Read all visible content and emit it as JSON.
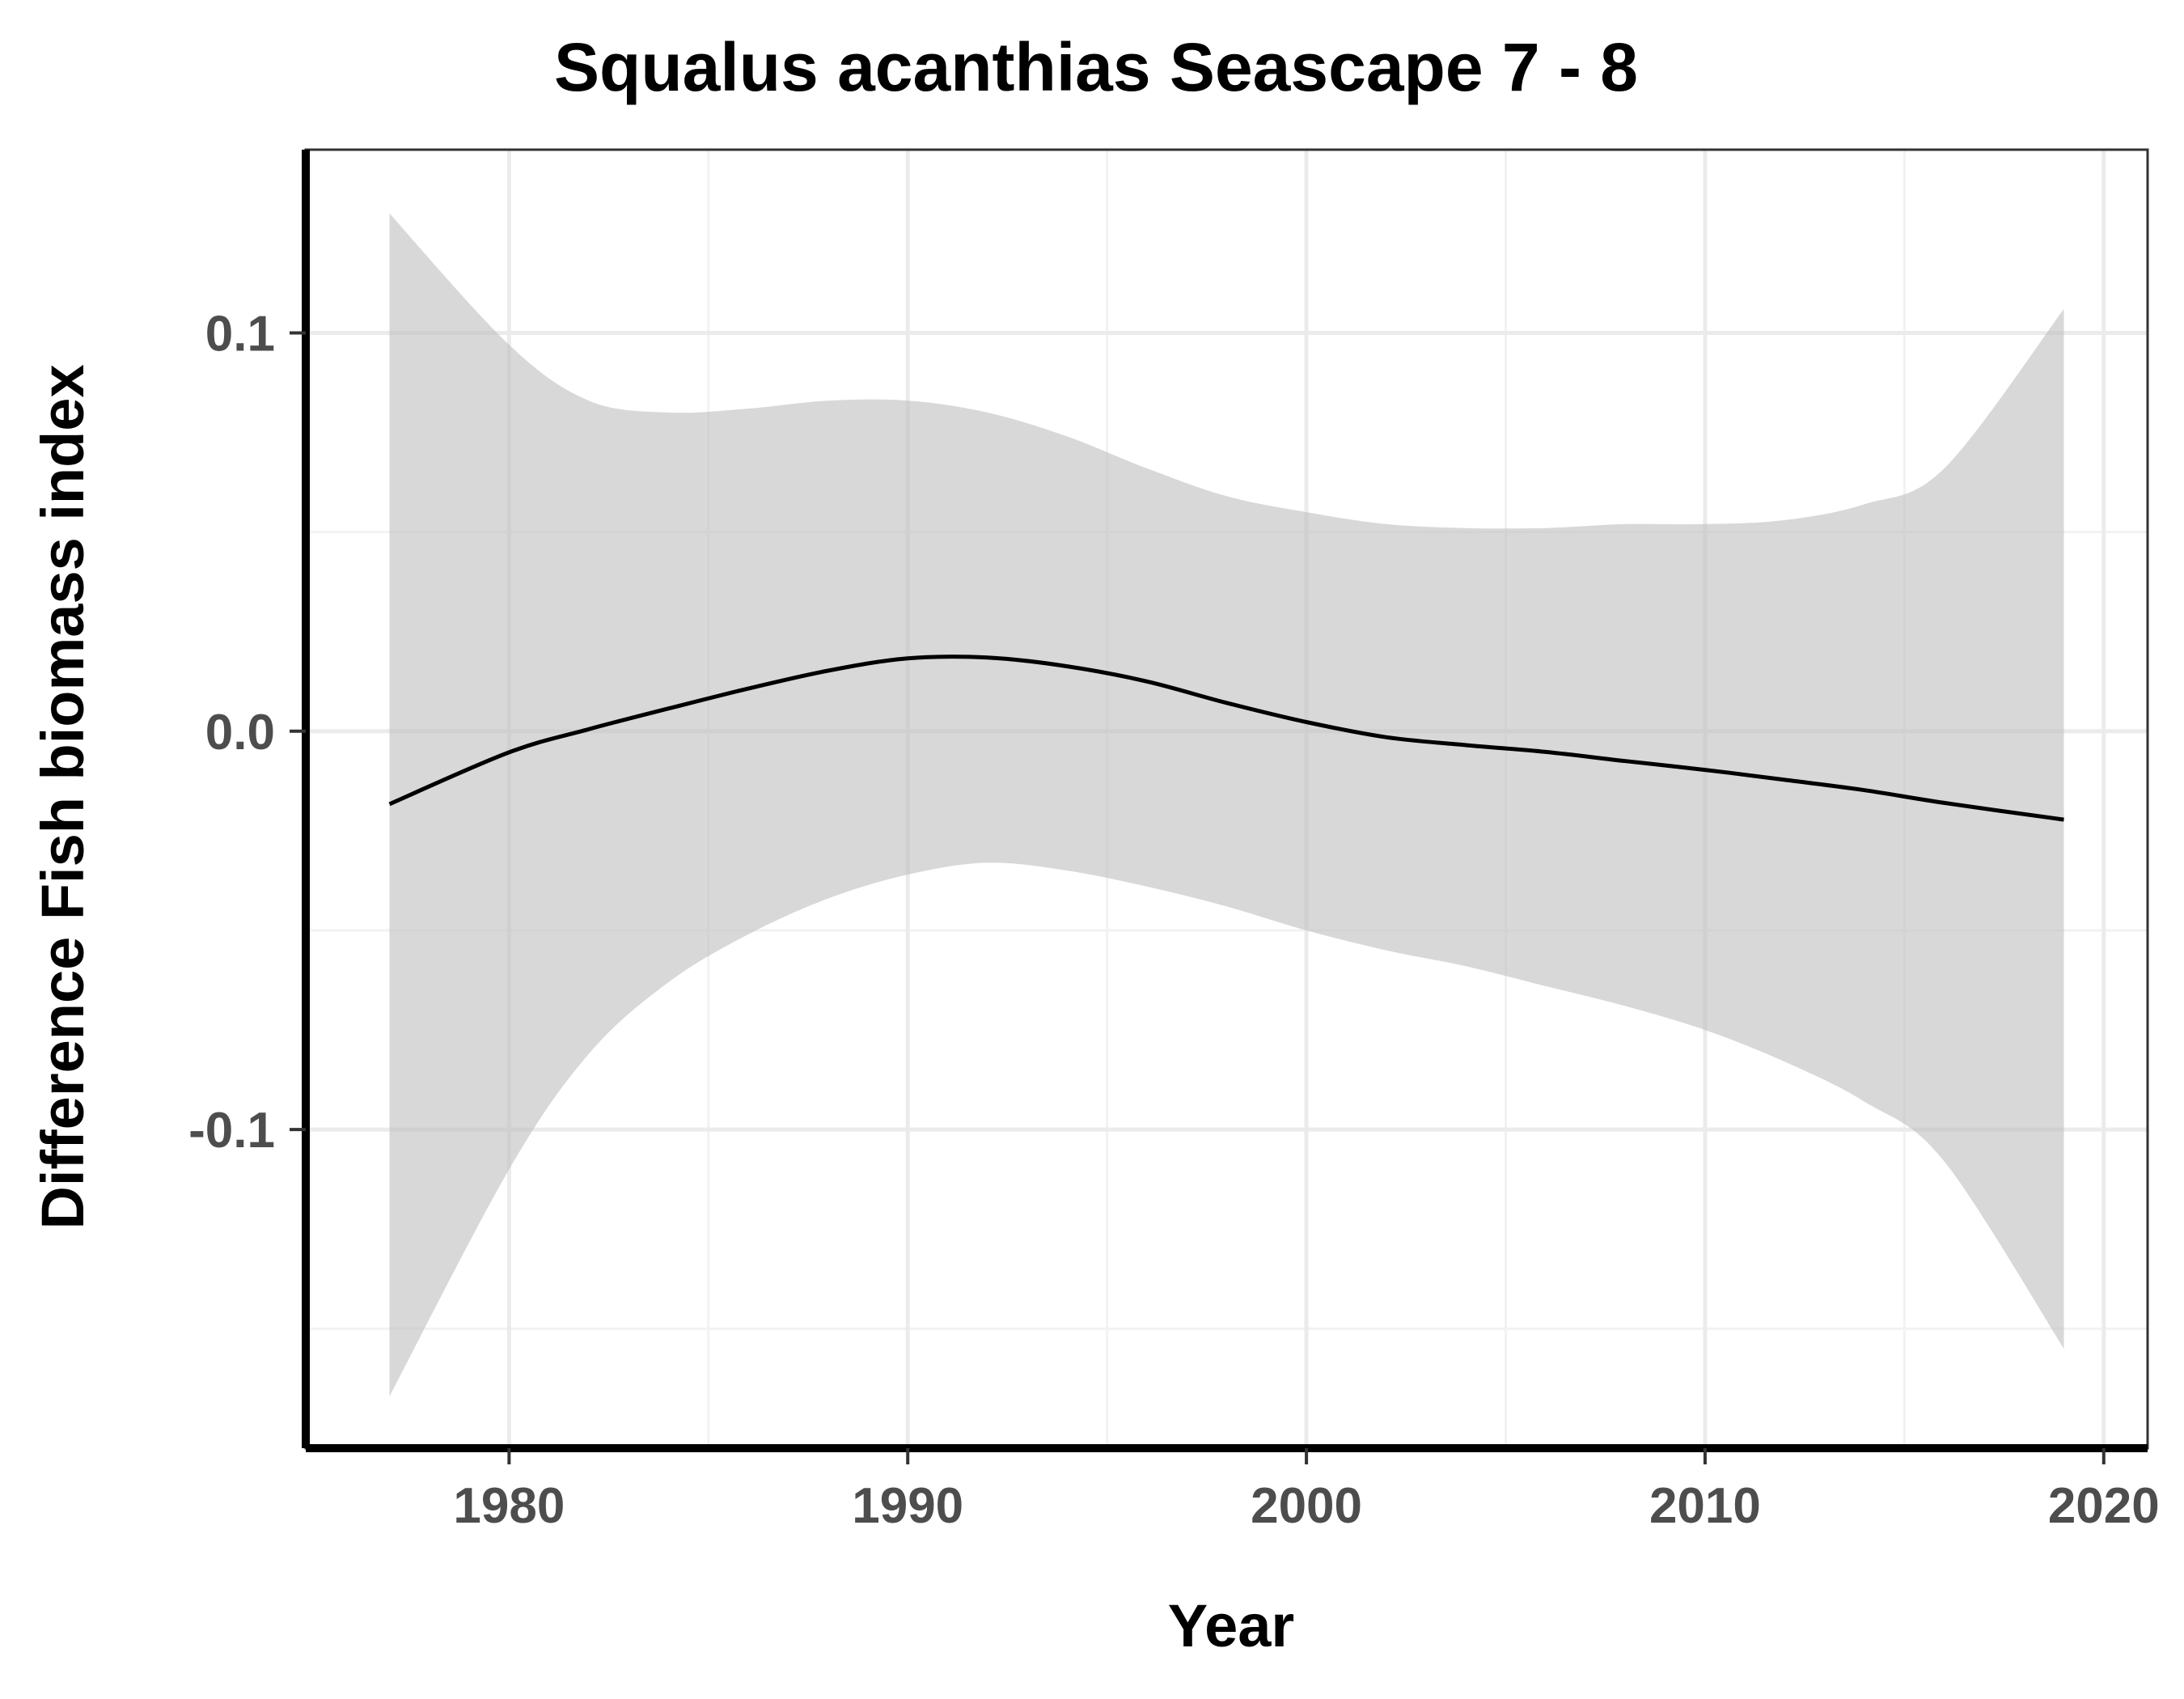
{
  "chart_data": {
    "type": "line",
    "title": "Squalus acanthias Seascape 7 - 8",
    "xlabel": "Year",
    "ylabel": "Difference Fish biomass index",
    "xlim": [
      1974.9,
      2021.1
    ],
    "ylim": [
      -0.18,
      0.146
    ],
    "x_ticks": [
      1980,
      1990,
      2000,
      2010,
      2020
    ],
    "x_tick_labels": [
      "1980",
      "1990",
      "2000",
      "2010",
      "2020"
    ],
    "y_ticks": [
      -0.1,
      0.0,
      0.1
    ],
    "y_tick_labels": [
      "-0.1",
      "0.0",
      "0.1"
    ],
    "grid": true,
    "legend": "none",
    "colors": {
      "line": "#000000",
      "ribbon": "#bebebe",
      "grid_major": "#ebebeb",
      "grid_minor": "#f2f2f2",
      "axis": "#000000"
    },
    "series": [
      {
        "x": [
          1977,
          1980,
          1982,
          1984,
          1986,
          1988,
          1990,
          1992,
          1994,
          1996,
          1998,
          2000,
          2002,
          2004,
          2006,
          2008,
          2010,
          2012,
          2014,
          2016,
          2019
        ],
        "y": [
          -0.0183,
          -0.0053,
          0.0005,
          0.0057,
          0.0107,
          0.0152,
          0.0183,
          0.0185,
          0.0163,
          0.0125,
          0.0071,
          0.0023,
          -0.0015,
          -0.0035,
          -0.0052,
          -0.0075,
          -0.0097,
          -0.0122,
          -0.0148,
          -0.018,
          -0.0222
        ],
        "lower": [
          -0.167,
          -0.11,
          -0.081,
          -0.063,
          -0.051,
          -0.042,
          -0.036,
          -0.033,
          -0.035,
          -0.039,
          -0.044,
          -0.05,
          -0.055,
          -0.059,
          -0.064,
          -0.069,
          -0.075,
          -0.083,
          -0.093,
          -0.108,
          -0.155
        ],
        "upper": [
          0.13,
          0.097,
          0.083,
          0.08,
          0.081,
          0.083,
          0.083,
          0.08,
          0.074,
          0.066,
          0.059,
          0.055,
          0.052,
          0.051,
          0.051,
          0.052,
          0.052,
          0.053,
          0.057,
          0.066,
          0.106
        ]
      }
    ]
  }
}
